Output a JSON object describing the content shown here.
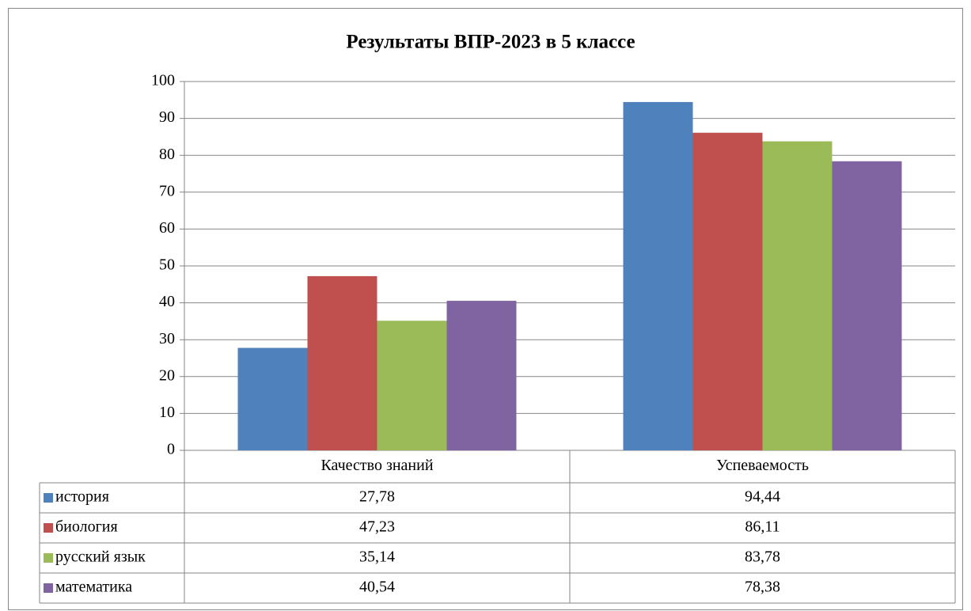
{
  "chart_data": {
    "type": "bar",
    "title": "Результаты ВПР-2023 в 5 классе",
    "categories": [
      "Качество знаний",
      "Успеваемость"
    ],
    "series": [
      {
        "name": "история",
        "color": "#4f81bd",
        "values": [
          27.78,
          94.44
        ],
        "value_labels": [
          "27,78",
          "94,44"
        ]
      },
      {
        "name": "биология",
        "color": "#c0504d",
        "values": [
          47.23,
          86.11
        ],
        "value_labels": [
          "47,23",
          "86,11"
        ]
      },
      {
        "name": "русский язык",
        "color": "#9bbb59",
        "values": [
          35.14,
          83.78
        ],
        "value_labels": [
          "35,14",
          "83,78"
        ]
      },
      {
        "name": "математика",
        "color": "#8064a2",
        "values": [
          40.54,
          78.38
        ],
        "value_labels": [
          "40,54",
          "78,38"
        ]
      }
    ],
    "ylim": [
      0,
      100
    ],
    "yticks": [
      0,
      10,
      20,
      30,
      40,
      50,
      60,
      70,
      80,
      90,
      100
    ],
    "grid": true
  }
}
